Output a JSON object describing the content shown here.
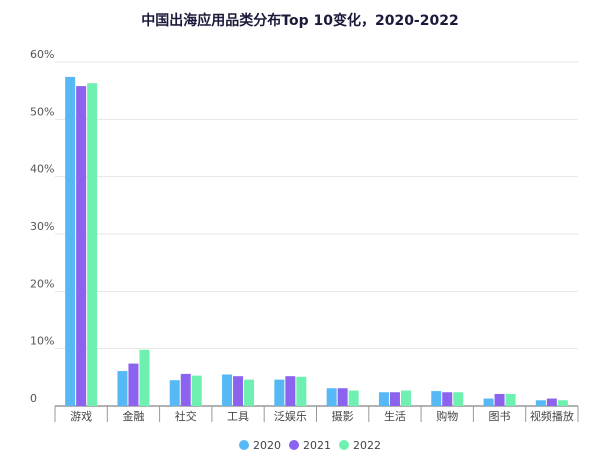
{
  "chart_data": {
    "type": "bar",
    "title": "中国出海应用品类分布Top 10变化，2020-2022",
    "categories": [
      "游戏",
      "金融",
      "社交",
      "工具",
      "泛娱乐",
      "摄影",
      "生活",
      "购物",
      "图书",
      "视频播放"
    ],
    "series": [
      {
        "name": "2020",
        "color": "#56b8f5",
        "values": [
          57.4,
          6.1,
          4.5,
          5.5,
          4.6,
          3.1,
          2.4,
          2.6,
          1.3,
          1.0
        ]
      },
      {
        "name": "2021",
        "color": "#8b63ee",
        "values": [
          55.8,
          7.4,
          5.6,
          5.2,
          5.2,
          3.1,
          2.4,
          2.4,
          2.1,
          1.3
        ]
      },
      {
        "name": "2022",
        "color": "#6ef0b0",
        "values": [
          56.3,
          9.8,
          5.3,
          4.6,
          5.1,
          2.7,
          2.7,
          2.4,
          2.1,
          1.0
        ]
      }
    ],
    "yticks": [
      "0",
      "10%",
      "20%",
      "30%",
      "40%",
      "50%",
      "60%"
    ],
    "ylim": [
      0,
      60
    ],
    "grid": true,
    "legend": "bottom"
  }
}
